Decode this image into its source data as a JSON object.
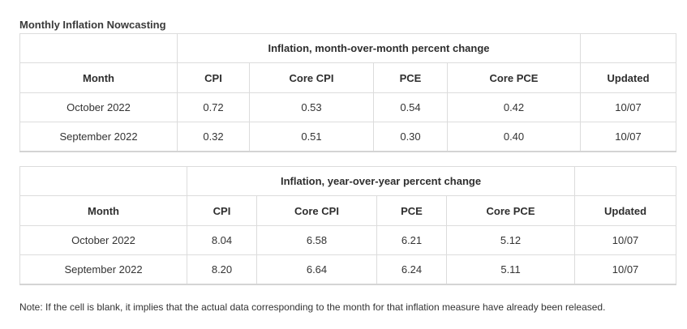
{
  "page": {
    "title": "Monthly Inflation Nowcasting"
  },
  "tables": [
    {
      "group_header": "Inflation, month-over-month percent change",
      "columns": [
        "Month",
        "CPI",
        "Core CPI",
        "PCE",
        "Core PCE",
        "Updated"
      ],
      "rows": [
        [
          "October 2022",
          "0.72",
          "0.53",
          "0.54",
          "0.42",
          "10/07"
        ],
        [
          "September 2022",
          "0.32",
          "0.51",
          "0.30",
          "0.40",
          "10/07"
        ]
      ]
    },
    {
      "group_header": "Inflation, year-over-year percent change",
      "columns": [
        "Month",
        "CPI",
        "Core CPI",
        "PCE",
        "Core PCE",
        "Updated"
      ],
      "rows": [
        [
          "October 2022",
          "8.04",
          "6.58",
          "6.21",
          "5.12",
          "10/07"
        ],
        [
          "September 2022",
          "8.20",
          "6.64",
          "6.24",
          "5.11",
          "10/07"
        ]
      ]
    }
  ],
  "note": "Note: If the cell is blank, it implies that the actual data corresponding to the month for that inflation measure have already been released."
}
